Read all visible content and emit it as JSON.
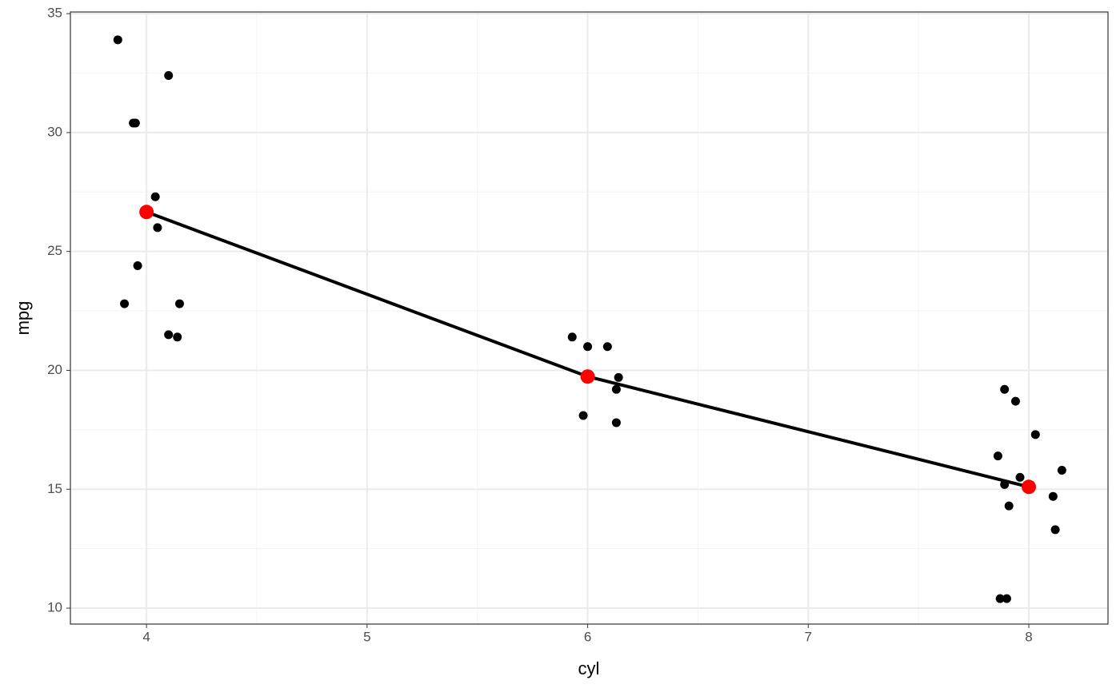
{
  "chart_data": {
    "type": "scatter",
    "x_label": "cyl",
    "y_label": "mpg",
    "xlim": [
      3.655,
      8.359
    ],
    "ylim": [
      9.33,
      35.07
    ],
    "xticks": [
      4,
      5,
      6,
      7,
      8
    ],
    "yticks": [
      10,
      15,
      20,
      25,
      30,
      35
    ],
    "grid": true,
    "series": [
      {
        "color": "#000000",
        "x": [
          3.87,
          4.1,
          3.94,
          3.95,
          4.04,
          4.05,
          3.96,
          3.9,
          4.15,
          4.1,
          4.14,
          5.93,
          6.0,
          6.09,
          6.14,
          6.13,
          5.98,
          6.13,
          7.89,
          7.94,
          8.03,
          7.86,
          8.15,
          7.96,
          7.89,
          8.11,
          7.91,
          8.12,
          7.87,
          7.9
        ],
        "values": [
          33.9,
          32.4,
          30.4,
          30.4,
          27.3,
          26.0,
          24.4,
          22.8,
          22.8,
          21.5,
          21.4,
          21.4,
          21.0,
          21.0,
          19.7,
          19.2,
          18.1,
          17.8,
          19.2,
          18.7,
          17.3,
          16.4,
          15.8,
          15.5,
          15.2,
          14.7,
          14.3,
          13.3,
          10.4,
          10.4
        ]
      },
      {
        "color": "#000000",
        "point_color": "#ff0000",
        "x": [
          4,
          6,
          8
        ],
        "values": [
          26.66,
          19.74,
          15.1
        ]
      }
    ]
  }
}
